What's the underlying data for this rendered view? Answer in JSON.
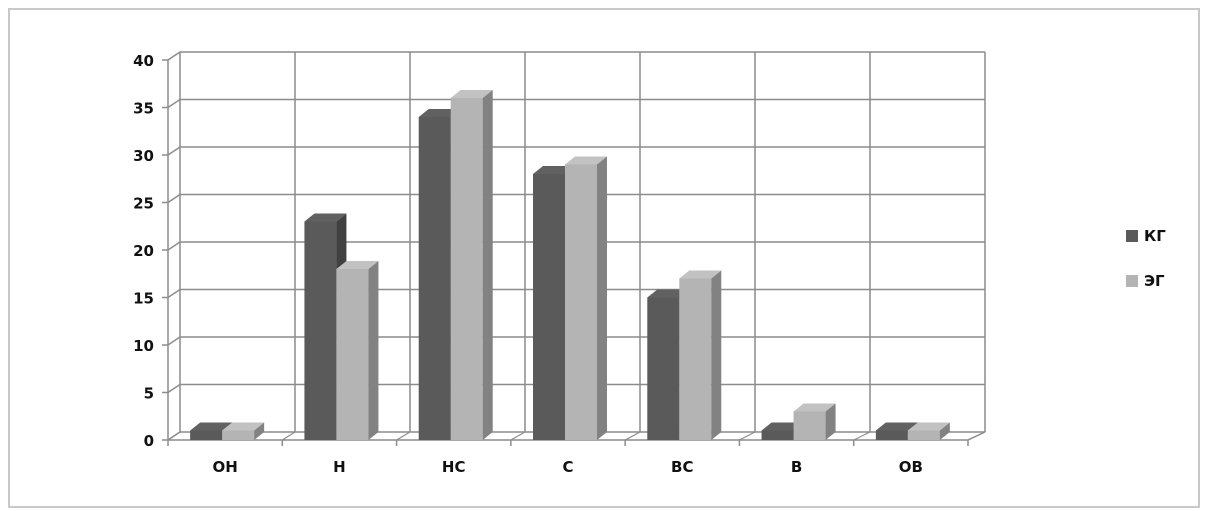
{
  "chart_data": {
    "type": "bar",
    "style": "3d-clustered-column",
    "categories": [
      "ОН",
      "Н",
      "НС",
      "С",
      "ВС",
      "В",
      "ОВ"
    ],
    "series": [
      {
        "name": "КГ",
        "values": [
          1,
          23,
          34,
          28,
          15,
          1,
          1
        ],
        "color": "#5a5a5a"
      },
      {
        "name": "ЭГ",
        "values": [
          1,
          18,
          36,
          29,
          17,
          3,
          1
        ],
        "color": "#b4b4b4"
      }
    ],
    "yticks": [
      "0",
      "5",
      "10",
      "15",
      "20",
      "25",
      "30",
      "35",
      "40"
    ],
    "ylim": [
      0,
      40
    ],
    "grid": true,
    "legend_position": "right",
    "title": "",
    "xlabel": "",
    "ylabel": ""
  }
}
